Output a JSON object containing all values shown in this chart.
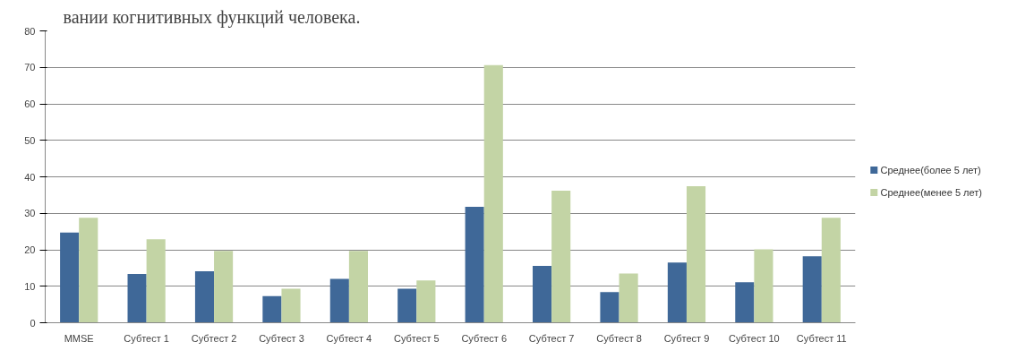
{
  "chart_data": {
    "type": "bar",
    "title": "вании когнитивных функций человека.",
    "categories": [
      "MMSE",
      "Субтест 1",
      "Субтест 2",
      "Субтест 3",
      "Субтест 4",
      "Субтест 5",
      "Субтест 6",
      "Субтест 7",
      "Субтест 8",
      "Субтест 9",
      "Субтест 10",
      "Субтест 11"
    ],
    "series": [
      {
        "name": "Среднее(более 5 лет)",
        "color": "#3f6898",
        "values": [
          24.7,
          13.4,
          14.1,
          7.3,
          12.0,
          9.3,
          31.8,
          15.6,
          8.4,
          16.5,
          11.1,
          18.2
        ]
      },
      {
        "name": "Среднее(менее 5 лет)",
        "color": "#c3d4a5",
        "values": [
          28.8,
          22.9,
          19.7,
          9.3,
          19.7,
          11.6,
          70.6,
          36.2,
          13.5,
          37.4,
          20.1,
          28.8
        ]
      }
    ],
    "ylim": [
      0,
      80
    ],
    "yticks": [
      0,
      10,
      20,
      30,
      40,
      50,
      60,
      70,
      80
    ],
    "grid": "y",
    "legend": "right"
  }
}
